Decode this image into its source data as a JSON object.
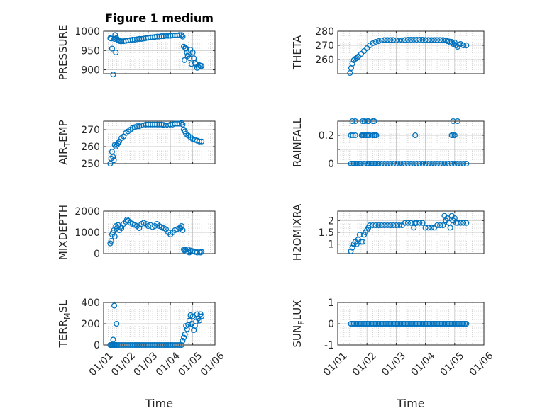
{
  "figure": {
    "title": "Figure 1 medium"
  },
  "colors": {
    "marker": "#0072BD",
    "axis": "#262626",
    "grid": "#bdbdbd",
    "background": "#ffffff"
  },
  "chart_data": [
    {
      "type": "scatter",
      "marker": "open-circle",
      "title": "Figure 1 medium",
      "ylabel": "PRESSURE",
      "ylabel_sub": "",
      "xlabel": "",
      "ylim": [
        890,
        1000
      ],
      "yticks": [
        900,
        950,
        1000
      ],
      "xlim": [
        0,
        5
      ],
      "grid": true,
      "x": [
        0.3,
        0.34,
        0.38,
        0.43,
        0.48,
        0.52,
        0.55,
        0.58,
        0.62,
        0.66,
        0.7,
        0.75,
        0.8,
        0.9,
        1.0,
        1.1,
        1.2,
        1.3,
        1.4,
        1.5,
        1.6,
        1.7,
        1.8,
        1.9,
        2.0,
        2.1,
        2.2,
        2.3,
        2.4,
        2.5,
        2.6,
        2.7,
        2.8,
        2.9,
        3.0,
        3.1,
        3.2,
        3.3,
        3.4,
        3.5,
        3.55,
        3.6,
        3.63,
        3.67,
        3.7,
        3.74,
        3.78,
        3.82,
        3.86,
        3.9,
        3.95,
        4.0,
        4.05,
        4.1,
        4.15,
        4.2,
        4.25,
        4.3,
        4.35,
        4.4
      ],
      "y": [
        982,
        981,
        955,
        888,
        980,
        990,
        945,
        982,
        978,
        976,
        975,
        974,
        974,
        974,
        975,
        976,
        977,
        978,
        978,
        979,
        980,
        980,
        981,
        982,
        983,
        984,
        984,
        985,
        986,
        986,
        987,
        987,
        988,
        988,
        988,
        989,
        989,
        989,
        990,
        990,
        986,
        960,
        925,
        957,
        955,
        945,
        936,
        940,
        930,
        952,
        915,
        945,
        930,
        918,
        915,
        905,
        908,
        912,
        910,
        910
      ]
    },
    {
      "type": "scatter",
      "marker": "open-circle",
      "ylabel": "THETA",
      "ylabel_sub": "",
      "xlabel": "",
      "ylim": [
        250,
        280
      ],
      "yticks": [
        260,
        270,
        280
      ],
      "xlim": [
        0,
        5
      ],
      "grid": true,
      "x": [
        0.42,
        0.46,
        0.5,
        0.55,
        0.6,
        0.65,
        0.7,
        0.8,
        0.9,
        1.0,
        1.1,
        1.2,
        1.3,
        1.4,
        1.5,
        1.6,
        1.7,
        1.8,
        1.9,
        2.0,
        2.1,
        2.2,
        2.3,
        2.4,
        2.5,
        2.6,
        2.7,
        2.8,
        2.9,
        3.0,
        3.1,
        3.2,
        3.3,
        3.4,
        3.5,
        3.6,
        3.7,
        3.75,
        3.8,
        3.85,
        3.9,
        3.95,
        4.0,
        4.05,
        4.1,
        4.15,
        4.2,
        4.3,
        4.4
      ],
      "y": [
        250.5,
        254,
        257,
        259.5,
        260.5,
        261,
        262,
        264,
        266,
        268,
        270,
        271.5,
        272.5,
        273,
        273.5,
        273.8,
        273.8,
        273.8,
        273.8,
        273.6,
        273.5,
        273.6,
        273.8,
        274,
        274,
        274,
        274,
        274,
        274,
        273.8,
        273.8,
        273.8,
        273.8,
        273.8,
        273.8,
        273.8,
        273.6,
        273,
        272.8,
        272,
        272.5,
        271,
        272,
        270,
        269,
        270.5,
        271,
        270,
        270
      ]
    },
    {
      "type": "scatter",
      "marker": "open-circle",
      "ylabel": "AIR",
      "ylabel_sub": "T",
      "ylabel_rest": "EMP",
      "xlabel": "",
      "ylim": [
        250,
        275
      ],
      "yticks": [
        250,
        260,
        270
      ],
      "xlim": [
        0,
        5
      ],
      "grid": true,
      "x": [
        0.3,
        0.34,
        0.38,
        0.42,
        0.46,
        0.5,
        0.55,
        0.6,
        0.65,
        0.7,
        0.8,
        0.9,
        1.0,
        1.1,
        1.2,
        1.3,
        1.4,
        1.5,
        1.6,
        1.7,
        1.8,
        1.9,
        2.0,
        2.1,
        2.2,
        2.3,
        2.4,
        2.5,
        2.6,
        2.7,
        2.8,
        2.9,
        3.0,
        3.1,
        3.2,
        3.3,
        3.4,
        3.5,
        3.55,
        3.6,
        3.65,
        3.7,
        3.8,
        3.9,
        4.0,
        4.1,
        4.2,
        4.3,
        4.4
      ],
      "y": [
        250,
        253,
        257,
        254,
        252,
        261,
        260,
        261,
        262,
        263,
        265,
        266,
        268,
        269,
        270,
        271,
        271.5,
        272,
        272,
        272.5,
        272.5,
        273,
        273,
        273,
        273,
        273,
        273,
        273,
        273,
        272.8,
        272.5,
        272.5,
        273,
        273,
        273.5,
        273.5,
        273.5,
        274,
        273,
        270,
        269,
        267.5,
        266.5,
        265.5,
        264.5,
        264,
        263.5,
        263,
        263
      ]
    },
    {
      "type": "scatter",
      "marker": "open-circle",
      "ylabel": "RAINFALL",
      "ylabel_sub": "",
      "xlabel": "",
      "ylim": [
        0,
        0.3
      ],
      "yticks": [
        0,
        0.1,
        0.2
      ],
      "ytick_labels": [
        "0",
        "",
        "0.2"
      ],
      "xlim": [
        0,
        5
      ],
      "grid": true,
      "x": [
        0.45,
        0.5,
        0.55,
        0.6,
        0.65,
        0.7,
        0.75,
        0.8,
        0.9,
        1.0,
        1.05,
        1.1,
        1.15,
        1.2,
        1.25,
        1.3,
        1.35,
        1.4,
        1.5,
        1.6,
        1.7,
        1.8,
        1.9,
        2.0,
        2.1,
        2.2,
        2.3,
        2.4,
        2.5,
        2.6,
        2.7,
        2.8,
        2.9,
        3.0,
        3.1,
        3.2,
        3.3,
        3.4,
        3.5,
        3.6,
        3.7,
        3.8,
        3.9,
        4.0,
        4.1,
        4.2,
        4.3,
        4.4,
        0.45,
        0.52,
        0.6,
        0.82,
        0.86,
        0.9,
        0.95,
        1.0,
        1.05,
        1.1,
        1.2,
        1.25,
        1.28,
        1.32,
        2.65,
        3.9,
        3.95,
        4.0,
        0.5,
        0.6,
        0.85,
        0.92,
        1.02,
        1.05,
        1.2,
        1.25,
        3.95,
        4.1
      ],
      "y": [
        0,
        0,
        0,
        0,
        0,
        0,
        0,
        0,
        0,
        0,
        0,
        0,
        0,
        0,
        0,
        0,
        0,
        0,
        0,
        0,
        0,
        0,
        0,
        0,
        0,
        0,
        0,
        0,
        0,
        0,
        0,
        0,
        0,
        0,
        0,
        0,
        0,
        0,
        0,
        0,
        0,
        0,
        0,
        0,
        0,
        0,
        0,
        0,
        0.2,
        0.2,
        0.2,
        0.2,
        0.2,
        0.2,
        0.2,
        0.2,
        0.2,
        0.2,
        0.2,
        0.2,
        0.2,
        0.2,
        0.2,
        0.2,
        0.2,
        0.2,
        0.3,
        0.3,
        0.3,
        0.3,
        0.3,
        0.3,
        0.3,
        0.3,
        0.3,
        0.3
      ]
    },
    {
      "type": "scatter",
      "marker": "open-circle",
      "ylabel": "MIXDEPTH",
      "ylabel_sub": "",
      "xlabel": "",
      "ylim": [
        0,
        2000
      ],
      "yticks": [
        0,
        1000,
        2000
      ],
      "xlim": [
        0,
        5
      ],
      "grid": true,
      "x": [
        0.3,
        0.34,
        0.38,
        0.42,
        0.46,
        0.5,
        0.55,
        0.6,
        0.65,
        0.7,
        0.75,
        0.8,
        0.9,
        1.0,
        1.05,
        1.1,
        1.2,
        1.3,
        1.4,
        1.5,
        1.6,
        1.7,
        1.8,
        1.9,
        2.0,
        2.1,
        2.2,
        2.3,
        2.4,
        2.5,
        2.6,
        2.7,
        2.8,
        2.9,
        3.0,
        3.1,
        3.2,
        3.3,
        3.4,
        3.45,
        3.5,
        3.55,
        3.6,
        3.63,
        3.67,
        3.72,
        3.78,
        3.85,
        3.9,
        4.0,
        4.1,
        4.2,
        4.3,
        4.35,
        4.4
      ],
      "y": [
        480,
        600,
        900,
        1000,
        1100,
        800,
        1300,
        1200,
        1350,
        1100,
        1250,
        1200,
        1400,
        1500,
        1600,
        1550,
        1450,
        1400,
        1350,
        1300,
        1200,
        1400,
        1450,
        1400,
        1300,
        1350,
        1250,
        1300,
        1400,
        1300,
        1250,
        1200,
        1150,
        1000,
        900,
        1000,
        1100,
        1150,
        1200,
        1200,
        1300,
        1100,
        200,
        150,
        200,
        100,
        200,
        50,
        150,
        120,
        80,
        50,
        100,
        50,
        80
      ]
    },
    {
      "type": "scatter",
      "marker": "open-circle",
      "ylabel": "H2OMIXRA",
      "ylabel_sub": "",
      "xlabel": "",
      "ylim": [
        0.6,
        2.4
      ],
      "yticks": [
        1,
        1.5,
        2
      ],
      "xlim": [
        0,
        5
      ],
      "grid": true,
      "x": [
        0.45,
        0.5,
        0.55,
        0.6,
        0.65,
        0.7,
        0.75,
        0.8,
        0.85,
        0.9,
        0.95,
        1.0,
        1.05,
        1.1,
        1.2,
        1.3,
        1.4,
        1.5,
        1.6,
        1.7,
        1.8,
        1.9,
        2.0,
        2.1,
        2.2,
        2.3,
        2.4,
        2.5,
        2.6,
        2.65,
        2.7,
        2.8,
        2.9,
        3.0,
        3.1,
        3.2,
        3.3,
        3.4,
        3.5,
        3.6,
        3.65,
        3.7,
        3.75,
        3.8,
        3.85,
        3.9,
        3.95,
        4.0,
        4.05,
        4.1,
        4.2,
        4.3,
        4.4
      ],
      "y": [
        0.7,
        0.85,
        1.0,
        1.1,
        1.0,
        1.2,
        1.4,
        1.1,
        1.1,
        1.4,
        1.5,
        1.6,
        1.7,
        1.8,
        1.8,
        1.8,
        1.8,
        1.8,
        1.8,
        1.8,
        1.8,
        1.8,
        1.8,
        1.8,
        1.8,
        1.9,
        1.9,
        1.9,
        1.7,
        1.9,
        1.9,
        1.9,
        1.9,
        1.7,
        1.7,
        1.7,
        1.7,
        1.8,
        1.8,
        1.8,
        2.2,
        2.0,
        2.1,
        1.9,
        1.7,
        2.2,
        2.0,
        2.1,
        1.9,
        1.9,
        1.9,
        1.9,
        1.9
      ]
    },
    {
      "type": "scatter",
      "marker": "open-circle",
      "ylabel": "TERR",
      "ylabel_sub": "M",
      "ylabel_rest": "SL",
      "xlabel": "Time",
      "ylim": [
        0,
        400
      ],
      "yticks": [
        0,
        200,
        400
      ],
      "xlim": [
        0,
        5
      ],
      "grid": true,
      "xticks": [
        0,
        1,
        2,
        3,
        4,
        5
      ],
      "xtick_labels": [
        "01/01",
        "01/02",
        "01/03",
        "01/04",
        "01/05",
        "01/06"
      ],
      "x": [
        0.3,
        0.35,
        0.4,
        0.45,
        0.5,
        0.55,
        0.6,
        0.7,
        0.8,
        0.9,
        1.0,
        1.1,
        1.2,
        1.3,
        1.4,
        1.5,
        1.6,
        1.7,
        1.8,
        1.9,
        2.0,
        2.1,
        2.2,
        2.3,
        2.4,
        2.5,
        2.6,
        2.7,
        2.8,
        2.9,
        3.0,
        3.1,
        3.2,
        3.3,
        3.4,
        3.5,
        0.43,
        0.48,
        0.58,
        3.55,
        3.6,
        3.65,
        3.7,
        3.75,
        3.8,
        3.85,
        3.9,
        3.95,
        4.0,
        4.05,
        4.1,
        4.15,
        4.2,
        4.25,
        4.3,
        4.35,
        4.4
      ],
      "y": [
        0,
        0,
        0,
        0,
        0,
        0,
        0,
        0,
        0,
        0,
        0,
        0,
        0,
        0,
        0,
        0,
        0,
        0,
        0,
        0,
        0,
        0,
        0,
        0,
        0,
        0,
        0,
        0,
        0,
        0,
        0,
        0,
        0,
        0,
        0,
        0,
        50,
        370,
        200,
        40,
        70,
        100,
        180,
        150,
        190,
        230,
        280,
        200,
        270,
        140,
        180,
        220,
        290,
        250,
        230,
        290,
        270
      ]
    },
    {
      "type": "scatter",
      "marker": "open-circle",
      "ylabel": "SUN",
      "ylabel_sub": "F",
      "ylabel_rest": "LUX",
      "xlabel": "Time",
      "ylim": [
        -1,
        1
      ],
      "yticks": [
        -1,
        0,
        1
      ],
      "xlim": [
        0,
        5
      ],
      "grid": true,
      "xticks": [
        0,
        1,
        2,
        3,
        4,
        5
      ],
      "xtick_labels": [
        "01/01",
        "01/02",
        "01/03",
        "01/04",
        "01/05",
        "01/06"
      ],
      "x": [
        0.45,
        0.5,
        0.55,
        0.6,
        0.65,
        0.7,
        0.75,
        0.8,
        0.85,
        0.9,
        0.95,
        1.0,
        1.05,
        1.1,
        1.15,
        1.2,
        1.25,
        1.3,
        1.35,
        1.4,
        1.45,
        1.5,
        1.55,
        1.6,
        1.65,
        1.7,
        1.75,
        1.8,
        1.85,
        1.9,
        1.95,
        2.0,
        2.05,
        2.1,
        2.15,
        2.2,
        2.25,
        2.3,
        2.35,
        2.4,
        2.45,
        2.5,
        2.55,
        2.6,
        2.65,
        2.7,
        2.75,
        2.8,
        2.85,
        2.9,
        2.95,
        3.0,
        3.05,
        3.1,
        3.15,
        3.2,
        3.25,
        3.3,
        3.35,
        3.4,
        3.45,
        3.5,
        3.55,
        3.6,
        3.65,
        3.7,
        3.75,
        3.8,
        3.85,
        3.9,
        3.95,
        4.0,
        4.05,
        4.1,
        4.15,
        4.2,
        4.25,
        4.3,
        4.35,
        4.4
      ],
      "y": [
        0,
        0,
        0,
        0,
        0,
        0,
        0,
        0,
        0,
        0,
        0,
        0,
        0,
        0,
        0,
        0,
        0,
        0,
        0,
        0,
        0,
        0,
        0,
        0,
        0,
        0,
        0,
        0,
        0,
        0,
        0,
        0,
        0,
        0,
        0,
        0,
        0,
        0,
        0,
        0,
        0,
        0,
        0,
        0,
        0,
        0,
        0,
        0,
        0,
        0,
        0,
        0,
        0,
        0,
        0,
        0,
        0,
        0,
        0,
        0,
        0,
        0,
        0,
        0,
        0,
        0,
        0,
        0,
        0,
        0,
        0,
        0,
        0,
        0,
        0,
        0,
        0,
        0,
        0,
        0
      ]
    }
  ]
}
